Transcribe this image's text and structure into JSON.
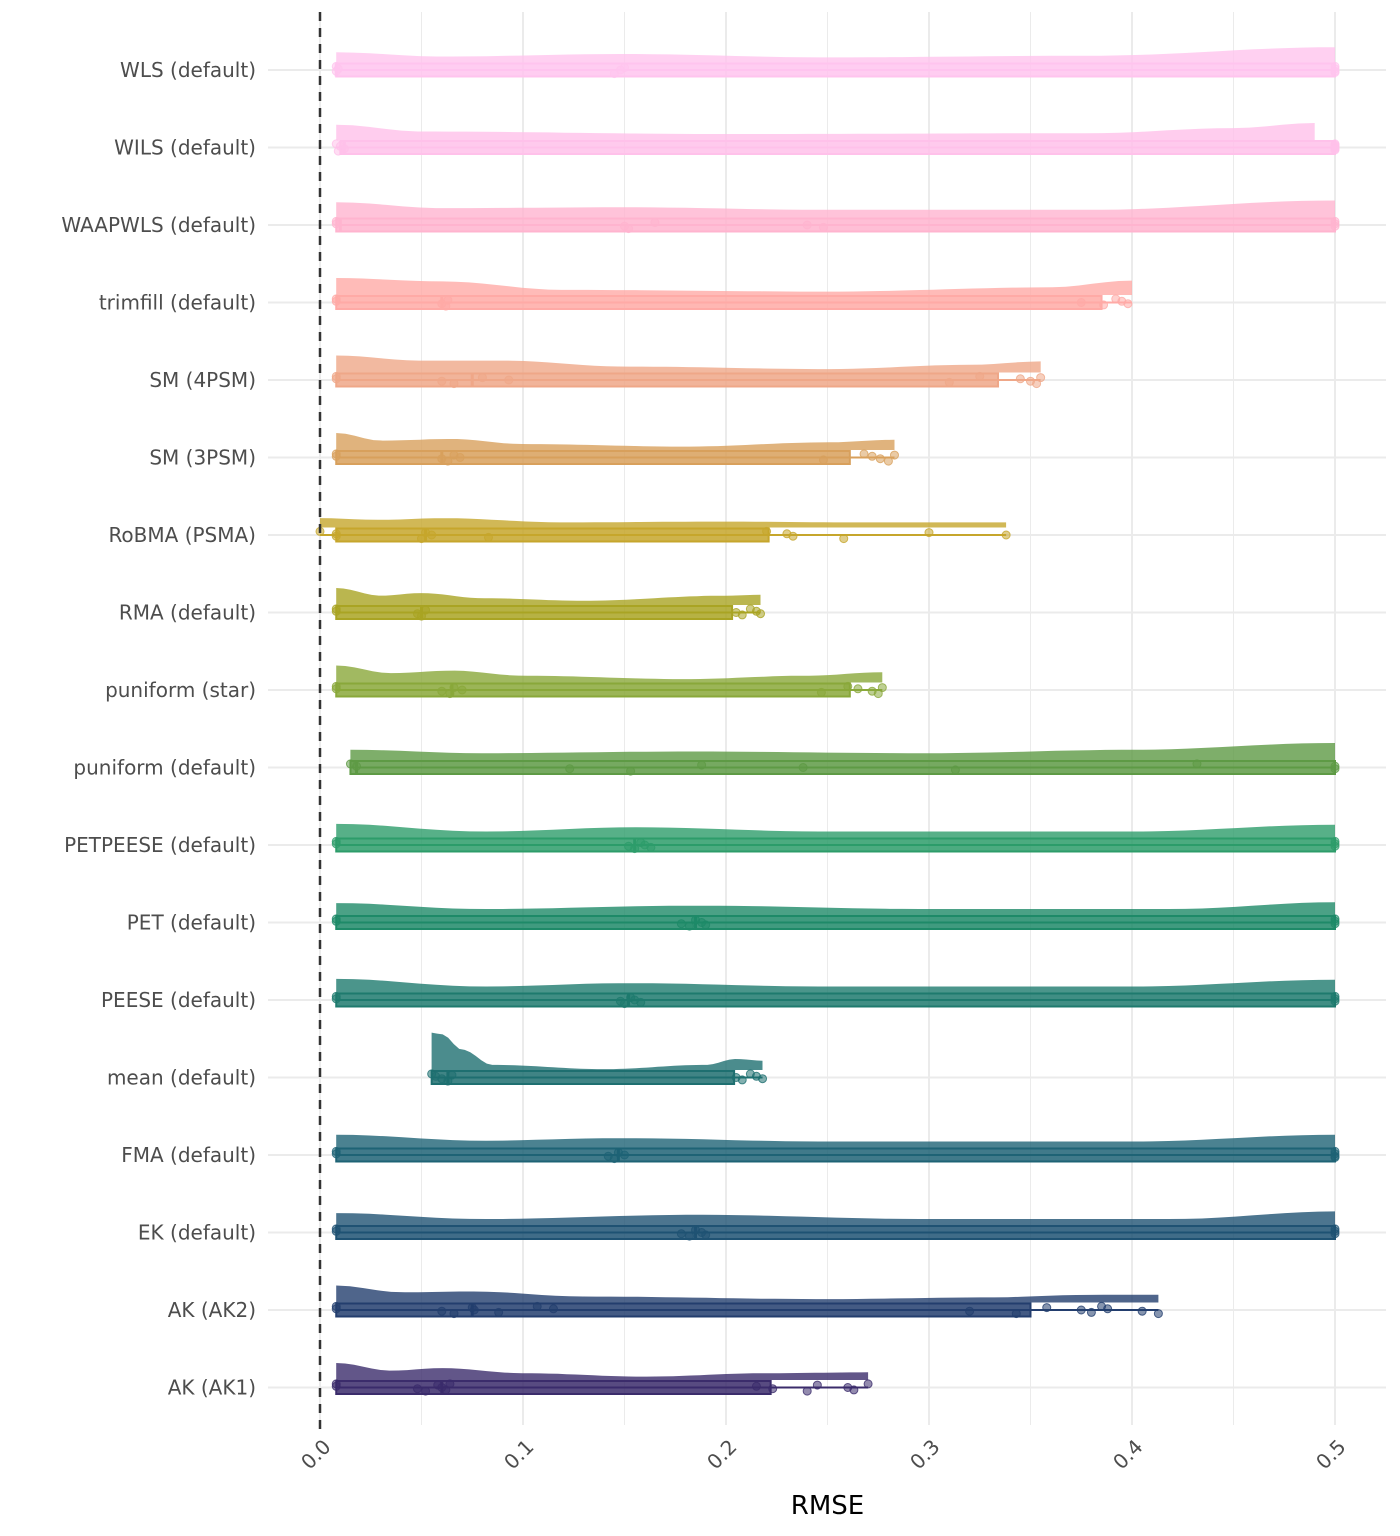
{
  "chart_data": {
    "type": "raincloud",
    "title": "",
    "xlabel": "RMSE",
    "ylabel": "",
    "xlim": [
      0.0,
      0.5
    ],
    "x_ticks": [
      "0.0",
      "0.1",
      "0.2",
      "0.3",
      "0.4",
      "0.5"
    ],
    "reference_line": {
      "x": 0.0,
      "style": "dashed"
    },
    "grid": true,
    "legend": "none",
    "categories": [
      {
        "name": "WLS (default)",
        "color": "#FFC4EE",
        "min": 0.008,
        "q1": 0.008,
        "median": 0.008,
        "q3": 0.5,
        "max": 0.5,
        "points": [
          0.008,
          0.009,
          0.008,
          0.145,
          0.15,
          0.148,
          0.5,
          0.5,
          0.5,
          0.5
        ],
        "density": [
          [
            0.008,
            0.6
          ],
          [
            0.06,
            0.35
          ],
          [
            0.15,
            0.5
          ],
          [
            0.25,
            0.3
          ],
          [
            0.38,
            0.4
          ],
          [
            0.5,
            0.9
          ]
        ]
      },
      {
        "name": "WILS (default)",
        "color": "#FFC1EA",
        "min": 0.008,
        "q1": 0.01,
        "median": 0.012,
        "q3": 0.5,
        "max": 0.5,
        "points": [
          0.008,
          0.01,
          0.012,
          0.009,
          0.5,
          0.5,
          0.5,
          0.5,
          0.5,
          0.5
        ],
        "density": [
          [
            0.008,
            0.9
          ],
          [
            0.05,
            0.5
          ],
          [
            0.2,
            0.35
          ],
          [
            0.38,
            0.4
          ],
          [
            0.45,
            0.7
          ],
          [
            0.49,
            1.0
          ]
        ]
      },
      {
        "name": "WAAPWLS (default)",
        "color": "#FFB4CF",
        "min": 0.008,
        "q1": 0.008,
        "median": 0.01,
        "q3": 0.5,
        "max": 0.5,
        "points": [
          0.008,
          0.008,
          0.15,
          0.152,
          0.165,
          0.24,
          0.248,
          0.5,
          0.5,
          0.5
        ],
        "density": [
          [
            0.008,
            0.9
          ],
          [
            0.06,
            0.55
          ],
          [
            0.15,
            0.6
          ],
          [
            0.25,
            0.45
          ],
          [
            0.38,
            0.45
          ],
          [
            0.5,
            1.0
          ]
        ]
      },
      {
        "name": "trimfill (default)",
        "color": "#FFAAA6",
        "min": 0.008,
        "q1": 0.008,
        "median": 0.06,
        "q3": 0.385,
        "max": 0.4,
        "points": [
          0.008,
          0.008,
          0.06,
          0.062,
          0.063,
          0.375,
          0.386,
          0.392,
          0.395,
          0.398
        ],
        "density": [
          [
            0.008,
            1.0
          ],
          [
            0.06,
            0.8
          ],
          [
            0.12,
            0.3
          ],
          [
            0.25,
            0.2
          ],
          [
            0.36,
            0.45
          ],
          [
            0.4,
            0.85
          ]
        ]
      },
      {
        "name": "SM (4PSM)",
        "color": "#EFA788",
        "min": 0.008,
        "q1": 0.008,
        "median": 0.075,
        "q3": 0.334,
        "max": 0.355,
        "points": [
          0.008,
          0.008,
          0.06,
          0.066,
          0.08,
          0.093,
          0.31,
          0.325,
          0.345,
          0.35,
          0.353,
          0.355
        ],
        "density": [
          [
            0.008,
            1.0
          ],
          [
            0.05,
            0.7
          ],
          [
            0.09,
            0.7
          ],
          [
            0.15,
            0.35
          ],
          [
            0.25,
            0.2
          ],
          [
            0.32,
            0.45
          ],
          [
            0.355,
            0.65
          ]
        ]
      },
      {
        "name": "SM (3PSM)",
        "color": "#D8A05C",
        "min": 0.008,
        "q1": 0.008,
        "median": 0.06,
        "q3": 0.261,
        "max": 0.283,
        "points": [
          0.008,
          0.008,
          0.06,
          0.063,
          0.066,
          0.069,
          0.248,
          0.268,
          0.272,
          0.276,
          0.28,
          0.283
        ],
        "density": [
          [
            0.008,
            1.0
          ],
          [
            0.03,
            0.55
          ],
          [
            0.065,
            0.65
          ],
          [
            0.1,
            0.35
          ],
          [
            0.18,
            0.2
          ],
          [
            0.25,
            0.45
          ],
          [
            0.283,
            0.6
          ]
        ]
      },
      {
        "name": "RoBMA (PSMA)",
        "color": "#C6A62C",
        "min": 0.0,
        "q1": 0.008,
        "median": 0.052,
        "q3": 0.221,
        "max": 0.338,
        "points": [
          0.0,
          0.008,
          0.008,
          0.05,
          0.052,
          0.055,
          0.083,
          0.22,
          0.23,
          0.233,
          0.258,
          0.3,
          0.338
        ],
        "density": [
          [
            0.0,
            0.55
          ],
          [
            0.03,
            0.45
          ],
          [
            0.06,
            0.55
          ],
          [
            0.12,
            0.3
          ],
          [
            0.2,
            0.35
          ],
          [
            0.26,
            0.3
          ],
          [
            0.338,
            0.3
          ]
        ]
      },
      {
        "name": "RMA (default)",
        "color": "#A9A423",
        "min": 0.008,
        "q1": 0.008,
        "median": 0.05,
        "q3": 0.203,
        "max": 0.217,
        "points": [
          0.008,
          0.008,
          0.048,
          0.05,
          0.052,
          0.205,
          0.208,
          0.212,
          0.215,
          0.217
        ],
        "density": [
          [
            0.008,
            1.0
          ],
          [
            0.03,
            0.55
          ],
          [
            0.05,
            0.7
          ],
          [
            0.08,
            0.4
          ],
          [
            0.13,
            0.25
          ],
          [
            0.2,
            0.55
          ],
          [
            0.217,
            0.6
          ]
        ]
      },
      {
        "name": "puniform (star)",
        "color": "#89A83A",
        "min": 0.008,
        "q1": 0.008,
        "median": 0.065,
        "q3": 0.261,
        "max": 0.277,
        "points": [
          0.008,
          0.008,
          0.06,
          0.064,
          0.066,
          0.07,
          0.247,
          0.26,
          0.265,
          0.272,
          0.275,
          0.277
        ],
        "density": [
          [
            0.008,
            1.0
          ],
          [
            0.035,
            0.55
          ],
          [
            0.065,
            0.7
          ],
          [
            0.1,
            0.4
          ],
          [
            0.18,
            0.2
          ],
          [
            0.24,
            0.4
          ],
          [
            0.277,
            0.6
          ]
        ]
      },
      {
        "name": "puniform (default)",
        "color": "#5E9A45",
        "min": 0.015,
        "q1": 0.015,
        "median": 0.018,
        "q3": 0.5,
        "max": 0.5,
        "points": [
          0.015,
          0.018,
          0.123,
          0.153,
          0.188,
          0.238,
          0.313,
          0.432,
          0.5,
          0.5
        ],
        "density": [
          [
            0.015,
            0.6
          ],
          [
            0.08,
            0.4
          ],
          [
            0.18,
            0.5
          ],
          [
            0.3,
            0.4
          ],
          [
            0.4,
            0.6
          ],
          [
            0.5,
            1.0
          ]
        ]
      },
      {
        "name": "PETPEESE (default)",
        "color": "#2D9C6A",
        "min": 0.008,
        "q1": 0.008,
        "median": 0.155,
        "q3": 0.5,
        "max": 0.5,
        "points": [
          0.008,
          0.008,
          0.152,
          0.155,
          0.158,
          0.16,
          0.163,
          0.5,
          0.5,
          0.5
        ],
        "density": [
          [
            0.008,
            0.8
          ],
          [
            0.08,
            0.35
          ],
          [
            0.155,
            0.6
          ],
          [
            0.25,
            0.35
          ],
          [
            0.4,
            0.35
          ],
          [
            0.5,
            0.75
          ]
        ]
      },
      {
        "name": "PET (default)",
        "color": "#1E8A68",
        "min": 0.008,
        "q1": 0.008,
        "median": 0.185,
        "q3": 0.5,
        "max": 0.5,
        "points": [
          0.008,
          0.008,
          0.178,
          0.182,
          0.185,
          0.188,
          0.19,
          0.5,
          0.5,
          0.5
        ],
        "density": [
          [
            0.008,
            0.7
          ],
          [
            0.08,
            0.35
          ],
          [
            0.185,
            0.55
          ],
          [
            0.3,
            0.35
          ],
          [
            0.42,
            0.35
          ],
          [
            0.5,
            0.75
          ]
        ]
      },
      {
        "name": "PEESE (default)",
        "color": "#1E7A6E",
        "min": 0.008,
        "q1": 0.008,
        "median": 0.152,
        "q3": 0.5,
        "max": 0.5,
        "points": [
          0.008,
          0.008,
          0.148,
          0.15,
          0.153,
          0.155,
          0.158,
          0.5,
          0.5,
          0.5
        ],
        "density": [
          [
            0.008,
            0.8
          ],
          [
            0.08,
            0.35
          ],
          [
            0.152,
            0.55
          ],
          [
            0.25,
            0.35
          ],
          [
            0.4,
            0.35
          ],
          [
            0.5,
            0.75
          ]
        ]
      },
      {
        "name": "mean (default)",
        "color": "#1E6F70",
        "min": 0.055,
        "q1": 0.055,
        "median": 0.063,
        "q3": 0.204,
        "max": 0.218,
        "points": [
          0.055,
          0.057,
          0.06,
          0.063,
          0.065,
          0.205,
          0.208,
          0.212,
          0.215,
          0.218
        ],
        "density": [
          [
            0.055,
            2.2
          ],
          [
            0.06,
            2.1
          ],
          [
            0.07,
            1.2
          ],
          [
            0.085,
            0.3
          ],
          [
            0.14,
            0.05
          ],
          [
            0.19,
            0.3
          ],
          [
            0.205,
            0.65
          ],
          [
            0.218,
            0.55
          ]
        ]
      },
      {
        "name": "FMA (default)",
        "color": "#1E6375",
        "min": 0.008,
        "q1": 0.008,
        "median": 0.147,
        "q3": 0.5,
        "max": 0.5,
        "points": [
          0.008,
          0.008,
          0.142,
          0.145,
          0.147,
          0.15,
          0.5,
          0.5,
          0.5,
          0.5
        ],
        "density": [
          [
            0.008,
            0.75
          ],
          [
            0.08,
            0.4
          ],
          [
            0.147,
            0.55
          ],
          [
            0.25,
            0.35
          ],
          [
            0.4,
            0.35
          ],
          [
            0.5,
            0.75
          ]
        ]
      },
      {
        "name": "EK (default)",
        "color": "#1F5273",
        "min": 0.008,
        "q1": 0.008,
        "median": 0.185,
        "q3": 0.5,
        "max": 0.5,
        "points": [
          0.008,
          0.008,
          0.178,
          0.182,
          0.185,
          0.188,
          0.19,
          0.5,
          0.5,
          0.5
        ],
        "density": [
          [
            0.008,
            0.7
          ],
          [
            0.08,
            0.35
          ],
          [
            0.185,
            0.6
          ],
          [
            0.3,
            0.35
          ],
          [
            0.42,
            0.35
          ],
          [
            0.5,
            0.8
          ]
        ]
      },
      {
        "name": "AK (AK2)",
        "color": "#233E6E",
        "min": 0.008,
        "q1": 0.008,
        "median": 0.075,
        "q3": 0.35,
        "max": 0.413,
        "points": [
          0.008,
          0.008,
          0.06,
          0.066,
          0.075,
          0.076,
          0.088,
          0.107,
          0.115,
          0.32,
          0.343,
          0.358,
          0.375,
          0.38,
          0.385,
          0.388,
          0.405,
          0.413
        ],
        "density": [
          [
            0.008,
            1.0
          ],
          [
            0.04,
            0.6
          ],
          [
            0.075,
            0.65
          ],
          [
            0.13,
            0.35
          ],
          [
            0.25,
            0.2
          ],
          [
            0.33,
            0.3
          ],
          [
            0.38,
            0.45
          ],
          [
            0.413,
            0.45
          ]
        ]
      },
      {
        "name": "AK (AK1)",
        "color": "#3B2C6B",
        "min": 0.008,
        "q1": 0.008,
        "median": 0.06,
        "q3": 0.222,
        "max": 0.27,
        "points": [
          0.008,
          0.008,
          0.048,
          0.052,
          0.058,
          0.06,
          0.062,
          0.064,
          0.215,
          0.223,
          0.24,
          0.245,
          0.26,
          0.263,
          0.27
        ],
        "density": [
          [
            0.008,
            1.0
          ],
          [
            0.035,
            0.55
          ],
          [
            0.06,
            0.7
          ],
          [
            0.1,
            0.4
          ],
          [
            0.16,
            0.2
          ],
          [
            0.22,
            0.4
          ],
          [
            0.27,
            0.45
          ]
        ]
      }
    ]
  }
}
